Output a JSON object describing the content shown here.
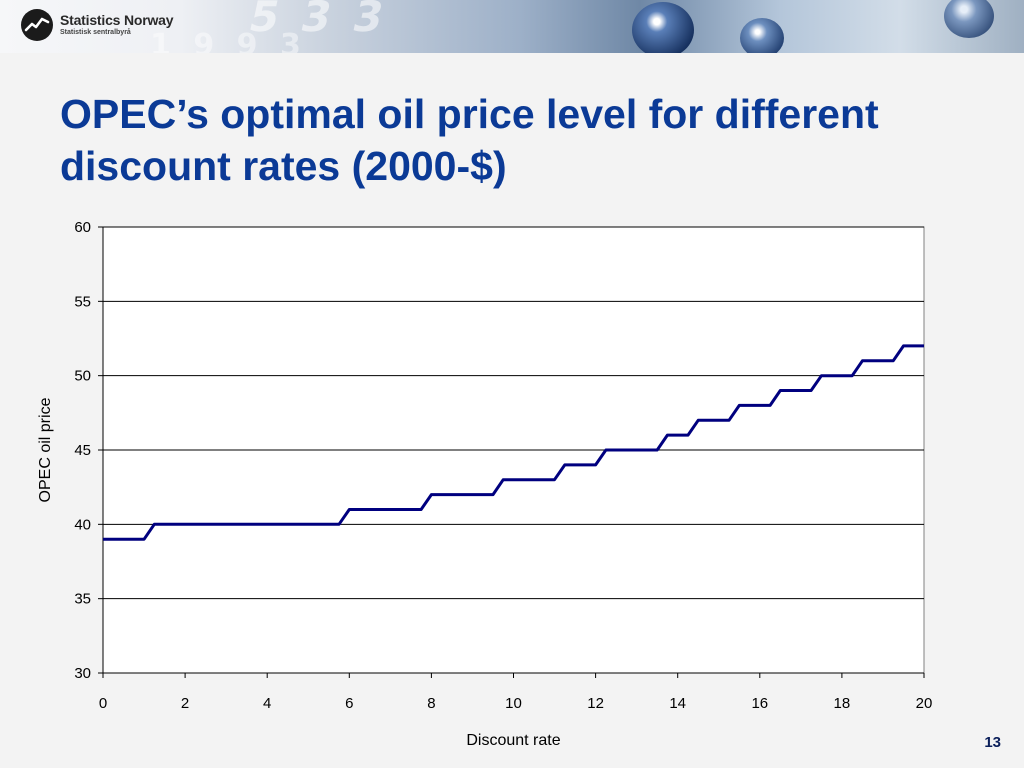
{
  "header": {
    "logo_name": "Statistics Norway",
    "logo_sub": "Statistisk sentralbyrå"
  },
  "slide": {
    "title": "OPEC’s optimal oil price level for different discount rates (2000-$)",
    "page_number": "13"
  },
  "chart_data": {
    "type": "line",
    "title": "",
    "xlabel": "Discount rate",
    "ylabel": "OPEC oil price",
    "xlim": [
      0,
      20
    ],
    "ylim": [
      30,
      60
    ],
    "x_ticks": [
      0,
      2,
      4,
      6,
      8,
      10,
      12,
      14,
      16,
      18,
      20
    ],
    "y_ticks": [
      30,
      35,
      40,
      45,
      50,
      55,
      60
    ],
    "grid": "horizontal",
    "line_color": "#00007f",
    "series": [
      {
        "x": [
          0,
          1,
          1.25,
          5.75,
          6,
          7.75,
          8,
          9.5,
          9.75,
          11,
          11.25,
          12,
          12.25,
          13.5,
          13.75,
          14.25,
          14.5,
          15.25,
          15.5,
          16.25,
          16.5,
          17.25,
          17.5,
          18.25,
          18.5,
          19.25,
          19.5,
          20
        ],
        "y": [
          39,
          39,
          40,
          40,
          41,
          41,
          42,
          42,
          43,
          43,
          44,
          44,
          45,
          45,
          46,
          46,
          47,
          47,
          48,
          48,
          49,
          49,
          50,
          50,
          51,
          51,
          52,
          52
        ]
      }
    ]
  }
}
